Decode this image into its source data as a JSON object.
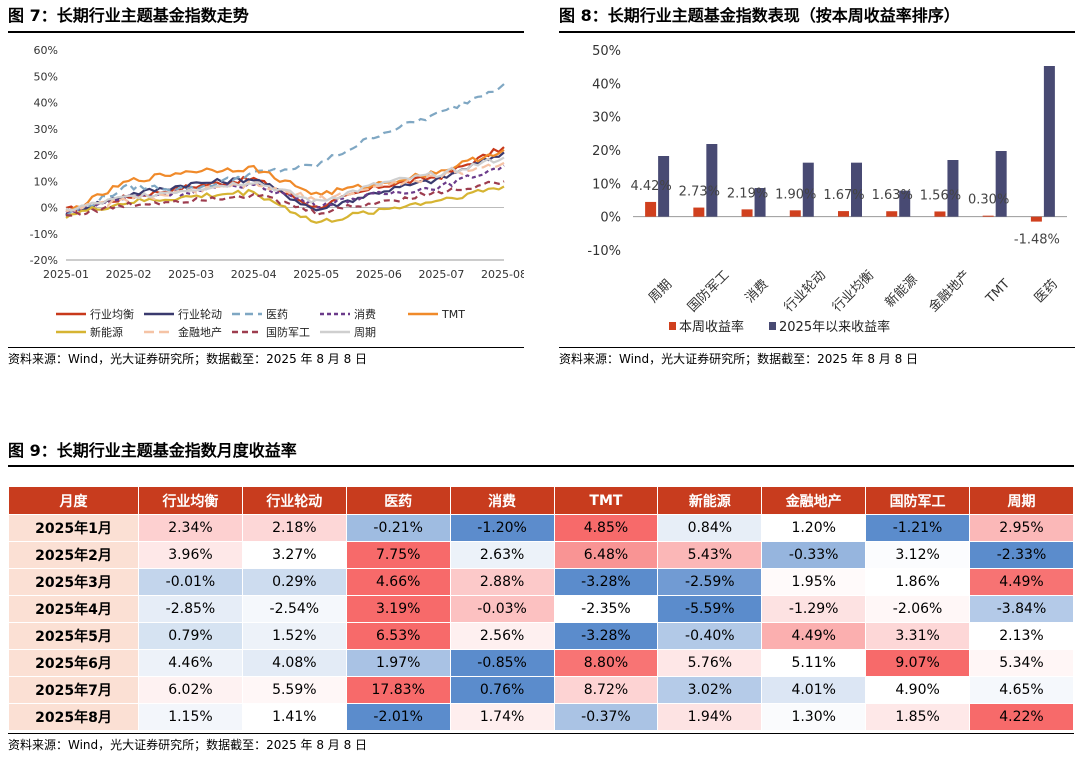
{
  "fig7": {
    "title": "图 7：长期行业主题基金指数走势",
    "source": "资料来源：Wind，光大证券研究所；数据截至：2025 年 8 月 8 日"
  },
  "fig8": {
    "title": "图 8：长期行业主题基金指数表现（按本周收益率排序）",
    "source": "资料来源：Wind，光大证券研究所；数据截至：2025 年 8 月 8 日"
  },
  "fig9": {
    "title": "图 9：长期行业主题基金指数月度收益率",
    "source": "资料来源：Wind，光大证券研究所；数据截至：2025 年 8 月 8 日"
  },
  "chart_data": [
    {
      "type": "line",
      "title": "长期行业主题基金指数走势",
      "x": [
        "2025-01",
        "2025-02",
        "2025-03",
        "2025-04",
        "2025-05",
        "2025-06",
        "2025-07",
        "2025-08"
      ],
      "ylim": [
        -20,
        60
      ],
      "yticks": [
        "60%",
        "50%",
        "40%",
        "30%",
        "20%",
        "10%",
        "0%",
        "-10%",
        "-20%"
      ],
      "ytick_values": [
        60,
        50,
        40,
        30,
        20,
        10,
        0,
        -10,
        -20
      ],
      "series": [
        {
          "name": "行业均衡",
          "color": "#c8391b",
          "dash": "",
          "values": [
            -1,
            4,
            8,
            11,
            0,
            8,
            12,
            23
          ]
        },
        {
          "name": "行业轮动",
          "color": "#3a3a6e",
          "dash": "",
          "values": [
            -2,
            5,
            9,
            11,
            -1,
            6,
            11,
            21
          ]
        },
        {
          "name": "医药",
          "color": "#7fa7c3",
          "dash": "8,5",
          "values": [
            -3,
            8,
            7,
            13,
            16,
            28,
            36,
            47
          ]
        },
        {
          "name": "消费",
          "color": "#6b3b8a",
          "dash": "4,3",
          "values": [
            -2,
            4,
            6,
            9,
            1,
            5,
            8,
            16
          ]
        },
        {
          "name": "TMT",
          "color": "#f08a2a",
          "dash": "",
          "values": [
            -2,
            10,
            14,
            15,
            5,
            9,
            14,
            22
          ]
        },
        {
          "name": "新能源",
          "color": "#d6b432",
          "dash": "",
          "values": [
            -3,
            2,
            4,
            6,
            -6,
            -1,
            3,
            8
          ]
        },
        {
          "name": "金融地产",
          "color": "#f5c3a5",
          "dash": "10,5",
          "values": [
            -1,
            3,
            6,
            9,
            3,
            8,
            12,
            17
          ]
        },
        {
          "name": "国防军工",
          "color": "#9d3c4e",
          "dash": "6,4",
          "values": [
            -3,
            1,
            3,
            5,
            -2,
            2,
            6,
            10
          ]
        },
        {
          "name": "周期",
          "color": "#cfcfcf",
          "dash": "",
          "values": [
            -1,
            4,
            7,
            10,
            2,
            9,
            13,
            19
          ]
        }
      ]
    },
    {
      "type": "bar",
      "title": "长期行业主题基金指数表现（按本周收益率排序）",
      "categories": [
        "周期",
        "国防军工",
        "消费",
        "行业轮动",
        "行业均衡",
        "新能源",
        "金融地产",
        "TMT",
        "医药"
      ],
      "series": [
        {
          "name": "本周收益率",
          "color": "#d0401e",
          "values": [
            4.42,
            2.73,
            2.19,
            1.9,
            1.67,
            1.63,
            1.56,
            0.3,
            -1.48
          ]
        },
        {
          "name": "2025年以来收益率",
          "color": "#484a73",
          "values": [
            18.2,
            21.8,
            8.6,
            16.2,
            16.2,
            7.8,
            17.0,
            19.7,
            45.2
          ]
        }
      ],
      "data_labels": [
        "4.42%",
        "2.73%",
        "2.19%",
        "1.90%",
        "1.67%",
        "1.63%",
        "1.56%",
        "0.30%",
        "-1.48%"
      ],
      "yticks": [
        "50%",
        "40%",
        "30%",
        "20%",
        "10%",
        "0%",
        "-10%"
      ],
      "ytick_values": [
        50,
        40,
        30,
        20,
        10,
        0,
        -10
      ],
      "ylim": [
        -10,
        50
      ]
    },
    {
      "type": "table",
      "title": "长期行业主题基金指数月度收益率",
      "headers": [
        "月度",
        "行业均衡",
        "行业轮动",
        "医药",
        "消费",
        "TMT",
        "新能源",
        "金融地产",
        "国防军工",
        "周期"
      ],
      "rows": [
        {
          "month": "2025年1月",
          "cells": [
            {
              "t": "2.34%",
              "v": 2.34
            },
            {
              "t": "2.18%",
              "v": 2.18
            },
            {
              "t": "-0.21%",
              "v": -0.21
            },
            {
              "t": "-1.20%",
              "v": -1.2
            },
            {
              "t": "4.85%",
              "v": 4.85
            },
            {
              "t": "0.84%",
              "v": 0.84
            },
            {
              "t": "1.20%",
              "v": 1.2
            },
            {
              "t": "-1.21%",
              "v": -1.21
            },
            {
              "t": "2.95%",
              "v": 2.95
            }
          ]
        },
        {
          "month": "2025年2月",
          "cells": [
            {
              "t": "3.96%",
              "v": 3.96
            },
            {
              "t": "3.27%",
              "v": 3.27
            },
            {
              "t": "7.75%",
              "v": 7.75
            },
            {
              "t": "2.63%",
              "v": 2.63
            },
            {
              "t": "6.48%",
              "v": 6.48
            },
            {
              "t": "5.43%",
              "v": 5.43
            },
            {
              "t": "-0.33%",
              "v": -0.33
            },
            {
              "t": "3.12%",
              "v": 3.12
            },
            {
              "t": "-2.33%",
              "v": -2.33
            }
          ]
        },
        {
          "month": "2025年3月",
          "cells": [
            {
              "t": "-0.01%",
              "v": -0.01
            },
            {
              "t": "0.29%",
              "v": 0.29
            },
            {
              "t": "4.66%",
              "v": 4.66
            },
            {
              "t": "2.88%",
              "v": 2.88
            },
            {
              "t": "-3.28%",
              "v": -3.28
            },
            {
              "t": "-2.59%",
              "v": -2.59
            },
            {
              "t": "1.95%",
              "v": 1.95
            },
            {
              "t": "1.86%",
              "v": 1.86
            },
            {
              "t": "4.49%",
              "v": 4.49
            }
          ]
        },
        {
          "month": "2025年4月",
          "cells": [
            {
              "t": "-2.85%",
              "v": -2.85
            },
            {
              "t": "-2.54%",
              "v": -2.54
            },
            {
              "t": "3.19%",
              "v": 3.19
            },
            {
              "t": "-0.03%",
              "v": -0.03
            },
            {
              "t": "-2.35%",
              "v": -2.35
            },
            {
              "t": "-5.59%",
              "v": -5.59
            },
            {
              "t": "-1.29%",
              "v": -1.29
            },
            {
              "t": "-2.06%",
              "v": -2.06
            },
            {
              "t": "-3.84%",
              "v": -3.84
            }
          ]
        },
        {
          "month": "2025年5月",
          "cells": [
            {
              "t": "0.79%",
              "v": 0.79
            },
            {
              "t": "1.52%",
              "v": 1.52
            },
            {
              "t": "6.53%",
              "v": 6.53
            },
            {
              "t": "2.56%",
              "v": 2.56
            },
            {
              "t": "-3.28%",
              "v": -3.28
            },
            {
              "t": "-0.40%",
              "v": -0.4
            },
            {
              "t": "4.49%",
              "v": 4.49
            },
            {
              "t": "3.31%",
              "v": 3.31
            },
            {
              "t": "2.13%",
              "v": 2.13
            }
          ]
        },
        {
          "month": "2025年6月",
          "cells": [
            {
              "t": "4.46%",
              "v": 4.46
            },
            {
              "t": "4.08%",
              "v": 4.08
            },
            {
              "t": "1.97%",
              "v": 1.97
            },
            {
              "t": "-0.85%",
              "v": -0.85
            },
            {
              "t": "8.80%",
              "v": 8.8
            },
            {
              "t": "5.76%",
              "v": 5.76
            },
            {
              "t": "5.11%",
              "v": 5.11
            },
            {
              "t": "9.07%",
              "v": 9.07
            },
            {
              "t": "5.34%",
              "v": 5.34
            }
          ]
        },
        {
          "month": "2025年7月",
          "cells": [
            {
              "t": "6.02%",
              "v": 6.02
            },
            {
              "t": "5.59%",
              "v": 5.59
            },
            {
              "t": "17.83%",
              "v": 17.83
            },
            {
              "t": "0.76%",
              "v": 0.76
            },
            {
              "t": "8.72%",
              "v": 8.72
            },
            {
              "t": "3.02%",
              "v": 3.02
            },
            {
              "t": "4.01%",
              "v": 4.01
            },
            {
              "t": "4.90%",
              "v": 4.9
            },
            {
              "t": "4.65%",
              "v": 4.65
            }
          ]
        },
        {
          "month": "2025年8月",
          "cells": [
            {
              "t": "1.15%",
              "v": 1.15
            },
            {
              "t": "1.41%",
              "v": 1.41
            },
            {
              "t": "-2.01%",
              "v": -2.01
            },
            {
              "t": "1.74%",
              "v": 1.74
            },
            {
              "t": "-0.37%",
              "v": -0.37
            },
            {
              "t": "1.94%",
              "v": 1.94
            },
            {
              "t": "1.30%",
              "v": 1.3
            },
            {
              "t": "1.85%",
              "v": 1.85
            },
            {
              "t": "4.22%",
              "v": 4.22
            }
          ]
        }
      ]
    }
  ]
}
